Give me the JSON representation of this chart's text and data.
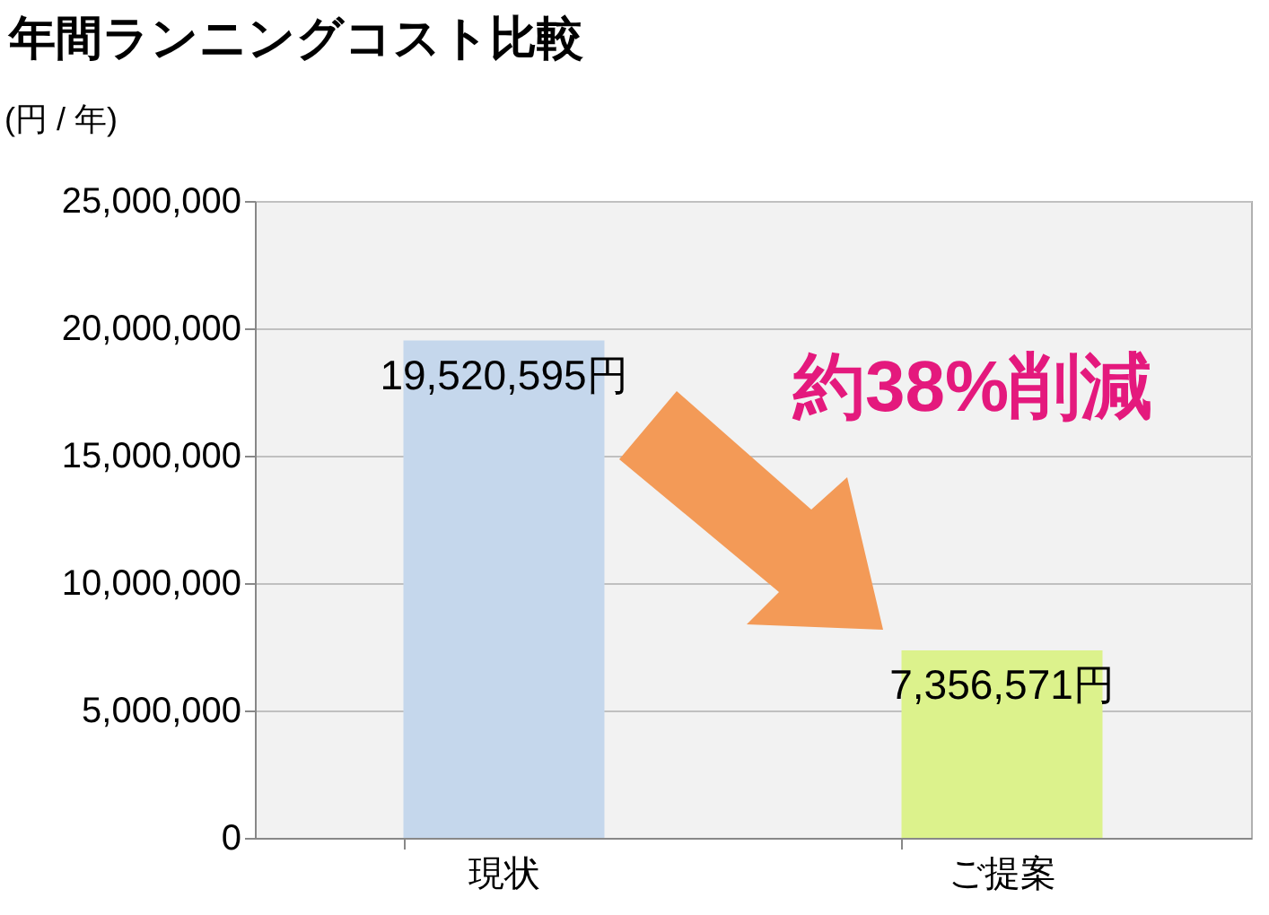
{
  "chart_data": {
    "type": "bar",
    "title": "年間ランニングコスト比較",
    "ylabel": "(円 / 年)",
    "categories": [
      "現状",
      "ご提案"
    ],
    "values": [
      19520595,
      7356571
    ],
    "colors": [
      "#c5d7ec",
      "#dcf28c"
    ],
    "value_labels": [
      "19,520,595円",
      "7,356,571円"
    ],
    "ylim": [
      0,
      25000000
    ],
    "yticks": [
      0,
      {
        "value": 5000000,
        "label": "5,000,000"
      },
      {
        "value": 10000000,
        "label": "10,000,000"
      },
      {
        "value": 15000000,
        "label": "15,000,000"
      },
      {
        "value": 20000000,
        "label": "20,000,000"
      },
      {
        "value": 25000000,
        "label": "25,000,000"
      }
    ],
    "grid": "y",
    "annotations": [
      "約38%削減"
    ]
  }
}
